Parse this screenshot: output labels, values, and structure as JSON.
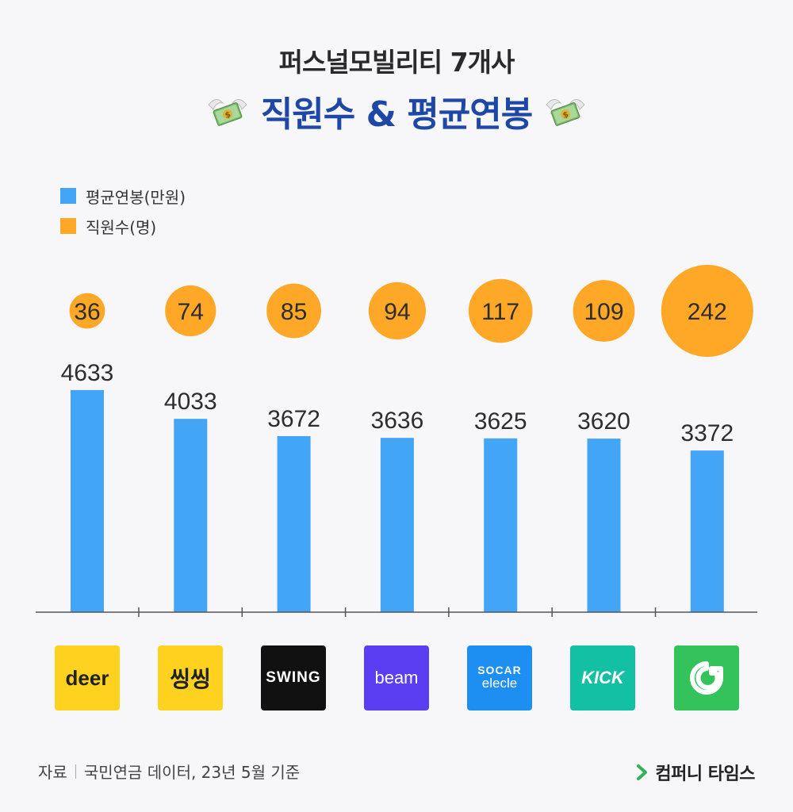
{
  "header": {
    "title_line1": "퍼스널모빌리티 7개사",
    "title_line2": "직원수 & 평균연봉"
  },
  "legend": [
    {
      "label": "평균연봉(만원)",
      "color": "#42a5f5"
    },
    {
      "label": "직원수(명)",
      "color": "#ffa726"
    }
  ],
  "chart_data": {
    "type": "bar",
    "categories": [
      "deer",
      "씽씽",
      "SWING",
      "beam",
      "SOCAR elecle",
      "KICK",
      "GCOO"
    ],
    "series": [
      {
        "name": "평균연봉(만원)",
        "type": "bar",
        "color": "#42a5f5",
        "values": [
          4633,
          4033,
          3672,
          3636,
          3625,
          3620,
          3372
        ]
      },
      {
        "name": "직원수(명)",
        "type": "bubble",
        "color": "#ffa726",
        "values": [
          36,
          74,
          85,
          94,
          117,
          109,
          242
        ]
      }
    ],
    "grid": false,
    "legend_position": "top-left"
  },
  "logos": [
    {
      "text": "deer",
      "bg": "#ffd21f",
      "fg": "#222222",
      "icon": "deer-logo"
    },
    {
      "text": "씽씽",
      "bg": "#ffd21f",
      "fg": "#222222",
      "icon": "ssingssing-logo"
    },
    {
      "text": "SWING",
      "bg": "#111111",
      "fg": "#ffffff",
      "icon": "swing-logo"
    },
    {
      "text": "beam",
      "bg": "#5b3df2",
      "fg": "#ffffff",
      "icon": "beam-logo"
    },
    {
      "text_top": "SOCAR",
      "text_bottom": "elecle",
      "bg": "#1d8ff2",
      "fg": "#ffffff",
      "icon": "socar-elecle-logo"
    },
    {
      "text": "KICK",
      "bg": "#13c0a3",
      "fg": "#ffffff",
      "icon": "kick-logo"
    },
    {
      "bg": "#34c25a",
      "fg": "#ffffff",
      "icon": "gcoo-logo"
    }
  ],
  "footer": {
    "source_label": "자료",
    "source_text": "국민연금 데이터, 23년 5월 기준",
    "brand": "컴퍼니 타임스",
    "brand_color": "#2fb356"
  }
}
